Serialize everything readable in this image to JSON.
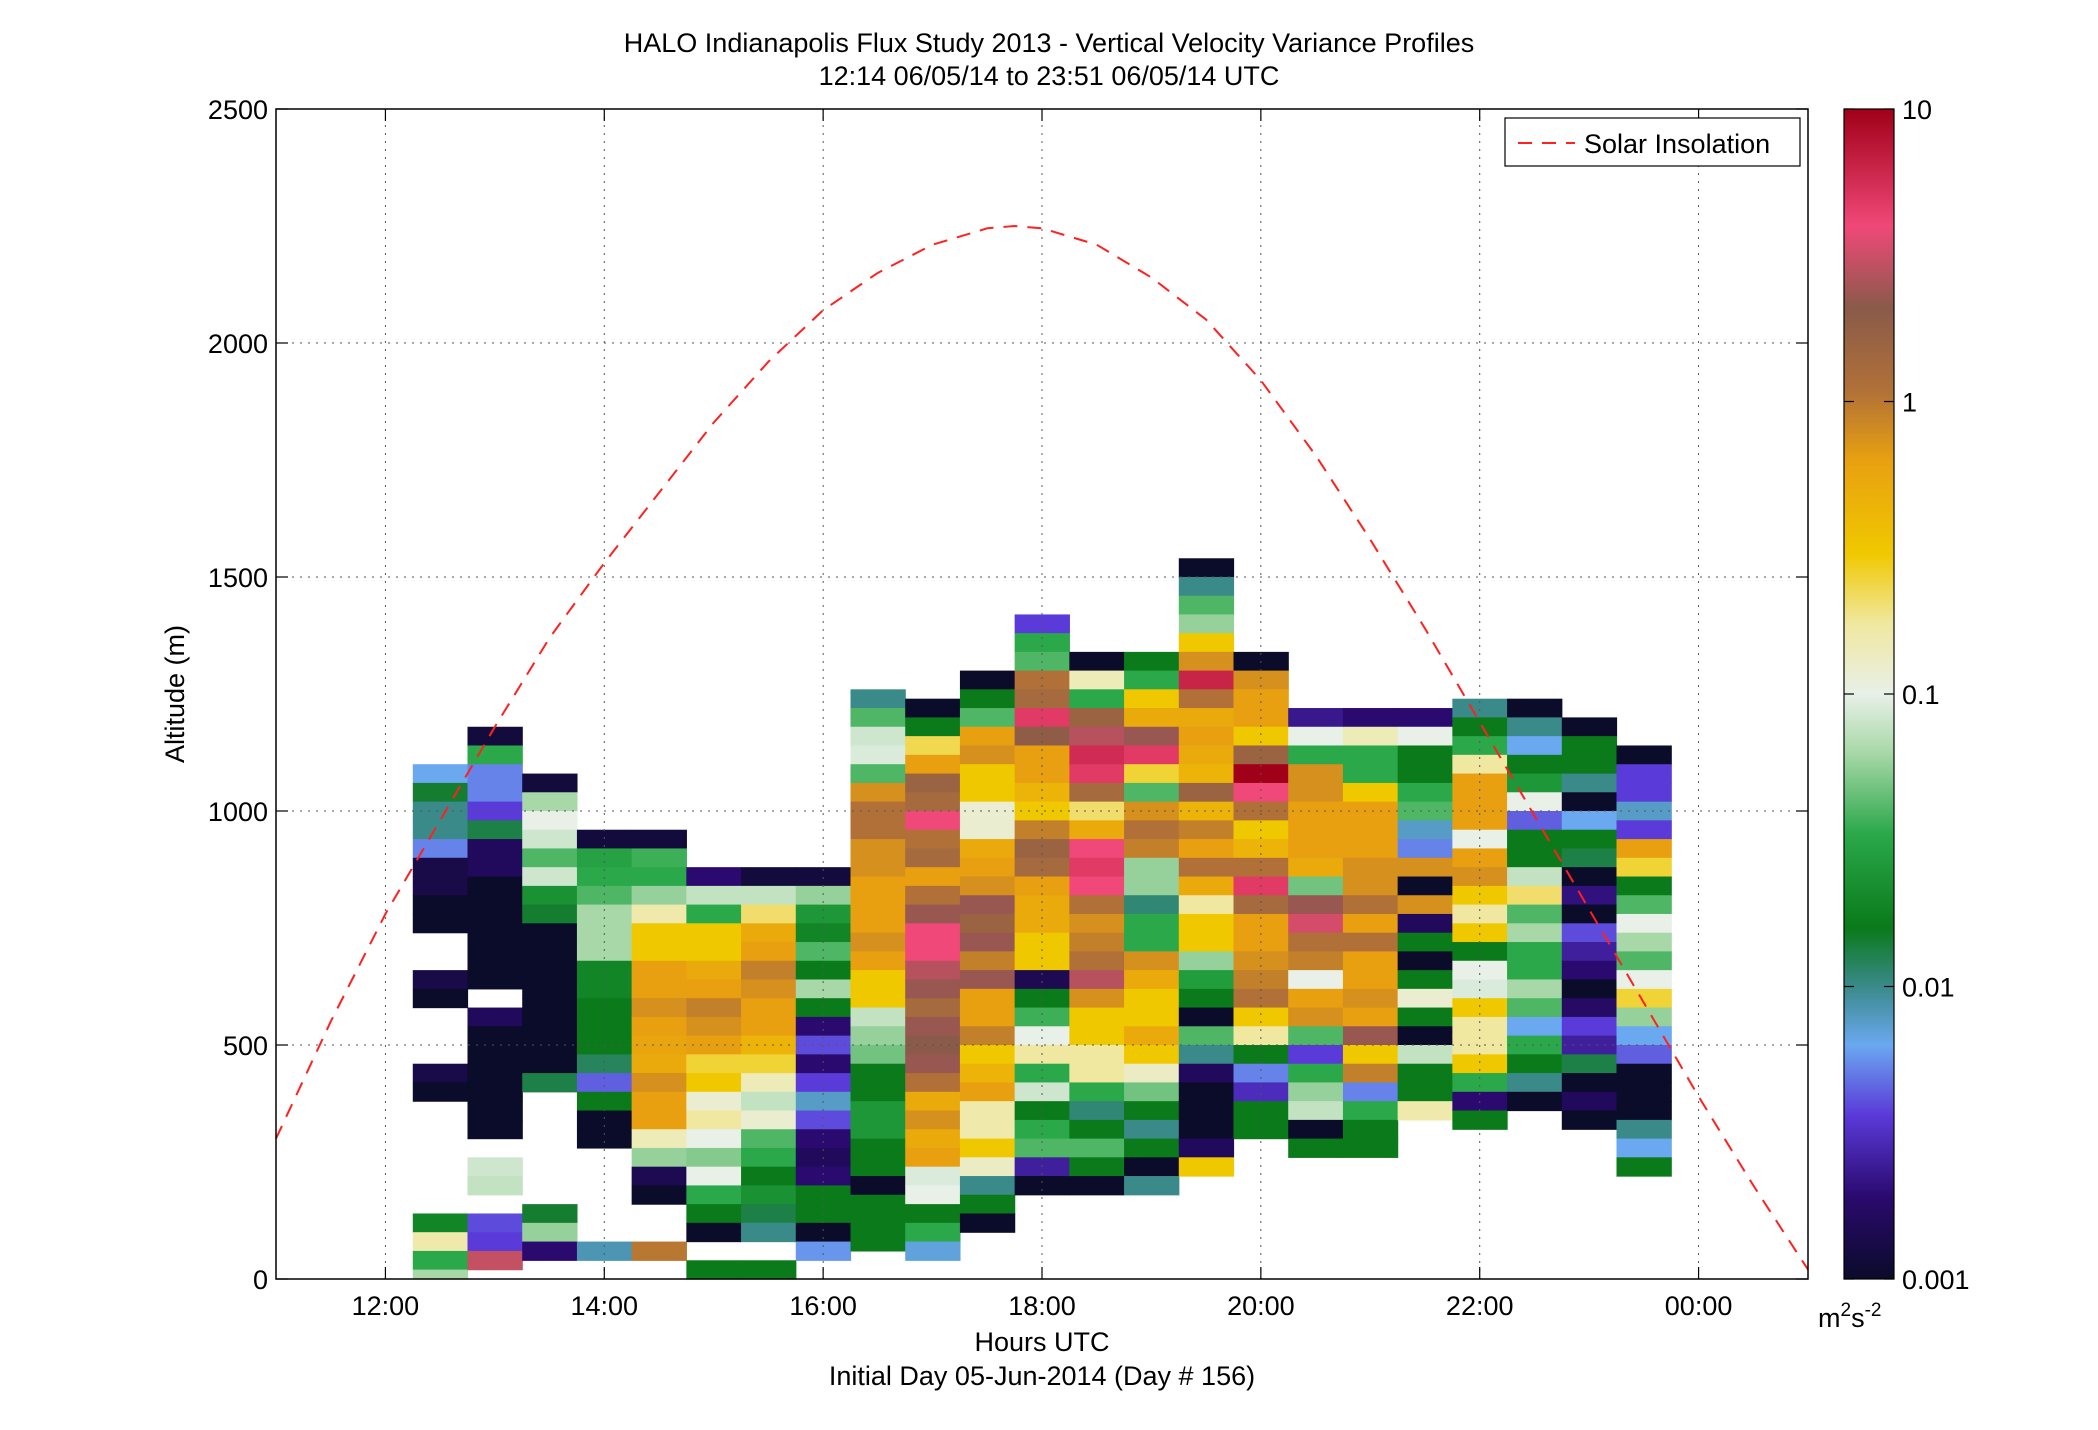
{
  "chart_data": {
    "type": "heatmap",
    "title": "HALO Indianapolis Flux Study 2013 - Vertical Velocity Variance Profiles",
    "subtitle": "12:14 06/05/14 to 23:51 06/05/14  UTC",
    "xlabel": "Hours UTC",
    "xlabel2": "Initial Day 05-Jun-2014 (Day # 156)",
    "ylabel": "Altitude (m)",
    "xlim": [
      11.0,
      25.0
    ],
    "ylim": [
      0,
      2500
    ],
    "x_ticks": [
      12,
      14,
      16,
      18,
      20,
      22,
      24
    ],
    "x_tick_labels": [
      "12:00",
      "14:00",
      "16:00",
      "18:00",
      "20:00",
      "22:00",
      "00:00"
    ],
    "y_ticks": [
      0,
      500,
      1000,
      1500,
      2000,
      2500
    ],
    "y_tick_labels": [
      "0",
      "500",
      "1000",
      "1500",
      "2000",
      "2500"
    ],
    "grid": true,
    "legend": {
      "placement": "top-right",
      "entries": [
        "Solar Insolation"
      ]
    },
    "colorbar": {
      "scale": "log",
      "range": [
        0.001,
        10
      ],
      "tick_values": [
        0.001,
        0.01,
        0.1,
        1,
        10
      ],
      "tick_labels": [
        "0.001",
        "0.01",
        "0.1",
        "1",
        "10"
      ],
      "unit_base": "m",
      "unit_exp1": "2",
      "unit_mid": "s",
      "unit_exp2": "-2",
      "stops": [
        {
          "v": 0.0,
          "color": "#0b0b2a"
        },
        {
          "v": 0.07,
          "color": "#2a0a6e"
        },
        {
          "v": 0.14,
          "color": "#5a3ad8"
        },
        {
          "v": 0.2,
          "color": "#6aa8f0"
        },
        {
          "v": 0.25,
          "color": "#3a8a8a"
        },
        {
          "v": 0.3,
          "color": "#0a7a1a"
        },
        {
          "v": 0.38,
          "color": "#2aa84a"
        },
        {
          "v": 0.45,
          "color": "#a8d8a8"
        },
        {
          "v": 0.5,
          "color": "#e8f0e8"
        },
        {
          "v": 0.56,
          "color": "#f0e8a0"
        },
        {
          "v": 0.62,
          "color": "#f0c800"
        },
        {
          "v": 0.7,
          "color": "#e8a010"
        },
        {
          "v": 0.76,
          "color": "#b07038"
        },
        {
          "v": 0.83,
          "color": "#8a5a4a"
        },
        {
          "v": 0.9,
          "color": "#f04878"
        },
        {
          "v": 1.0,
          "color": "#a00018"
        }
      ]
    },
    "solar_insolation": {
      "name": "Solar Insolation",
      "color": "#ff2020",
      "x": [
        11.0,
        11.5,
        12.0,
        12.5,
        13.0,
        13.5,
        14.0,
        14.5,
        15.0,
        15.5,
        16.0,
        16.5,
        17.0,
        17.5,
        17.75,
        18.0,
        18.5,
        19.0,
        19.5,
        20.0,
        20.5,
        21.0,
        21.5,
        22.0,
        22.5,
        23.0,
        23.5,
        24.0,
        24.5,
        25.0
      ],
      "y": [
        300,
        550,
        780,
        980,
        1180,
        1370,
        1530,
        1680,
        1830,
        1960,
        2070,
        2150,
        2210,
        2245,
        2250,
        2245,
        2210,
        2140,
        2050,
        1920,
        1760,
        1580,
        1390,
        1190,
        990,
        790,
        590,
        390,
        200,
        20
      ]
    },
    "bin_width_hours": 0.5,
    "bin_height_m": 40,
    "profiles": [
      {
        "t": 12.5,
        "alt_top": 1100,
        "levels": [
          0.2,
          0.29,
          0.25,
          0.25,
          0.18,
          0.03,
          0.03,
          0.0,
          0.0,
          null,
          null,
          0.03,
          0.0,
          null,
          null,
          null,
          0.03,
          0.0,
          null,
          null,
          null,
          null,
          null,
          null,
          0.32,
          0.55,
          0.38,
          0.45,
          0.19
        ]
      },
      {
        "t": 13.0,
        "alt_top": 1180,
        "levels": [
          0.02,
          0.38,
          0.18,
          0.18,
          0.14,
          0.28,
          0.05,
          0.05,
          0.0,
          0.0,
          0.0,
          0.0,
          0.0,
          0.0,
          null,
          0.05,
          0.0,
          0.0,
          0.0,
          0.0,
          0.0,
          0.0,
          null,
          0.48,
          0.47,
          null,
          0.15,
          0.14,
          0.87
        ]
      },
      {
        "t": 13.5,
        "alt_top": 1080,
        "levels": [
          0.02,
          0.45,
          0.5,
          0.48,
          0.4,
          0.48,
          0.34,
          0.29,
          0.0,
          0.0,
          0.0,
          0.0,
          0.0,
          0.0,
          0.0,
          0.0,
          0.28,
          null,
          null,
          null,
          null,
          null,
          null,
          0.29,
          0.44,
          0.07
        ]
      },
      {
        "t": 14.0,
        "alt_top": 960,
        "levels": [
          0.02,
          0.37,
          0.38,
          0.4,
          0.45,
          0.45,
          0.45,
          0.32,
          0.32,
          0.3,
          0.3,
          0.3,
          0.27,
          0.16,
          0.3,
          0.0,
          0.0,
          null,
          null,
          null,
          null,
          null,
          0.23
        ]
      },
      {
        "t": 14.5,
        "alt_top": 960,
        "levels": [
          0.02,
          0.39,
          0.38,
          0.44,
          0.55,
          0.62,
          0.62,
          0.7,
          0.7,
          0.72,
          0.7,
          0.69,
          0.68,
          0.72,
          0.7,
          0.7,
          0.54,
          0.44,
          0.04,
          0.0,
          null,
          null,
          0.75
        ]
      },
      {
        "t": 15.0,
        "alt_top": 880,
        "levels": [
          0.07,
          0.47,
          0.38,
          0.62,
          0.62,
          0.68,
          0.7,
          0.74,
          0.72,
          0.7,
          0.6,
          0.62,
          0.52,
          0.56,
          0.5,
          0.43,
          0.5,
          0.38,
          0.3,
          0.0,
          null,
          0.3
        ]
      },
      {
        "t": 15.5,
        "alt_top": 880,
        "levels": [
          0.02,
          0.47,
          0.58,
          0.68,
          0.7,
          0.74,
          0.72,
          0.7,
          0.7,
          0.66,
          0.6,
          0.54,
          0.47,
          0.52,
          0.4,
          0.38,
          0.3,
          0.34,
          0.28,
          0.25,
          null,
          0.3
        ]
      },
      {
        "t": 16.0,
        "alt_top": 880,
        "levels": [
          0.02,
          0.44,
          0.35,
          0.32,
          0.4,
          0.3,
          0.45,
          0.3,
          0.07,
          0.15,
          0.07,
          0.14,
          0.22,
          0.15,
          0.07,
          0.05,
          0.07,
          0.3,
          0.3,
          0.0,
          0.19
        ]
      },
      {
        "t": 16.5,
        "alt_top": 1260,
        "levels": [
          0.25,
          0.4,
          0.48,
          0.49,
          0.4,
          0.72,
          0.76,
          0.76,
          0.72,
          0.72,
          0.7,
          0.7,
          0.7,
          0.72,
          0.7,
          0.62,
          0.62,
          0.47,
          0.44,
          0.42,
          0.3,
          0.3,
          0.35,
          0.35,
          0.3,
          0.3,
          0.0,
          0.3,
          0.3,
          0.3
        ]
      },
      {
        "t": 17.0,
        "alt_top": 1240,
        "levels": [
          0.0,
          0.3,
          0.59,
          0.7,
          0.8,
          0.78,
          0.9,
          0.76,
          0.78,
          0.7,
          0.76,
          0.84,
          0.9,
          0.9,
          0.86,
          0.84,
          0.78,
          0.84,
          0.83,
          0.84,
          0.76,
          0.68,
          0.72,
          0.68,
          0.7,
          0.49,
          0.5,
          0.3,
          0.38,
          0.21
        ]
      },
      {
        "t": 17.5,
        "alt_top": 1300,
        "levels": [
          0.0,
          0.3,
          0.4,
          0.7,
          0.72,
          0.62,
          0.62,
          0.52,
          0.52,
          0.68,
          0.7,
          0.72,
          0.84,
          0.8,
          0.84,
          0.74,
          0.84,
          0.7,
          0.7,
          0.74,
          0.62,
          0.66,
          0.7,
          0.55,
          0.55,
          0.62,
          0.53,
          0.25,
          0.3,
          0.0
        ]
      },
      {
        "t": 18.0,
        "alt_top": 1420,
        "levels": [
          0.14,
          0.38,
          0.4,
          0.76,
          0.78,
          0.92,
          0.82,
          0.7,
          0.7,
          0.66,
          0.62,
          0.74,
          0.8,
          0.78,
          0.7,
          0.68,
          0.68,
          0.62,
          0.62,
          0.04,
          0.3,
          0.39,
          0.5,
          0.56,
          0.38,
          0.48,
          0.3,
          0.38,
          0.4,
          0.1,
          0.0
        ]
      },
      {
        "t": 18.5,
        "alt_top": 1340,
        "levels": [
          0.0,
          0.54,
          0.38,
          0.8,
          0.86,
          0.94,
          0.92,
          0.78,
          0.58,
          0.68,
          0.9,
          0.92,
          0.9,
          0.76,
          0.72,
          0.74,
          0.76,
          0.86,
          0.72,
          0.62,
          0.62,
          0.56,
          0.56,
          0.38,
          0.26,
          0.3,
          0.4,
          0.3,
          0.0
        ]
      },
      {
        "t": 19.0,
        "alt_top": 1340,
        "levels": [
          0.3,
          0.38,
          0.62,
          0.68,
          0.84,
          0.92,
          0.6,
          0.4,
          0.72,
          0.76,
          0.74,
          0.44,
          0.44,
          0.26,
          0.38,
          0.38,
          0.72,
          0.68,
          0.62,
          0.62,
          0.68,
          0.62,
          0.53,
          0.42,
          0.3,
          0.25,
          0.3,
          0.0,
          0.25
        ]
      },
      {
        "t": 19.5,
        "alt_top": 1540,
        "levels": [
          0.0,
          0.25,
          0.4,
          0.44,
          0.62,
          0.72,
          0.95,
          0.76,
          0.68,
          0.7,
          0.68,
          0.66,
          0.8,
          0.66,
          0.74,
          0.7,
          0.76,
          0.68,
          0.56,
          0.62,
          0.62,
          0.44,
          0.36,
          0.3,
          0.0,
          0.4,
          0.25,
          0.05,
          0.0,
          0.0,
          0.0,
          0.05,
          0.62
        ]
      },
      {
        "t": 20.0,
        "alt_top": 1340,
        "levels": [
          0.0,
          0.72,
          0.7,
          0.7,
          0.62,
          0.8,
          1.0,
          0.9,
          0.76,
          0.62,
          0.66,
          0.76,
          0.92,
          0.78,
          0.7,
          0.7,
          0.72,
          0.74,
          0.76,
          0.62,
          0.56,
          0.3,
          0.18,
          0.12,
          0.3,
          0.3
        ]
      },
      {
        "t": 20.5,
        "alt_top": 1220,
        "levels": [
          0.09,
          0.5,
          0.38,
          0.72,
          0.72,
          0.7,
          0.7,
          0.7,
          0.68,
          0.42,
          0.84,
          0.88,
          0.76,
          0.74,
          0.5,
          0.7,
          0.72,
          0.4,
          0.14,
          0.38,
          0.44,
          0.47,
          0.0,
          0.3
        ]
      },
      {
        "t": 21.0,
        "alt_top": 1220,
        "levels": [
          0.07,
          0.54,
          0.38,
          0.38,
          0.62,
          0.7,
          0.7,
          0.7,
          0.72,
          0.72,
          0.76,
          0.7,
          0.76,
          0.7,
          0.7,
          0.72,
          0.7,
          0.84,
          0.62,
          0.74,
          0.18,
          0.38,
          0.3,
          0.3
        ]
      },
      {
        "t": 21.5,
        "alt_top": 1220,
        "levels": [
          0.07,
          0.5,
          0.3,
          0.3,
          0.38,
          0.4,
          0.22,
          0.18,
          0.72,
          0.0,
          0.72,
          0.05,
          0.3,
          0.0,
          0.3,
          0.52,
          0.3,
          0.0,
          0.47,
          0.3,
          0.3,
          0.55
        ]
      },
      {
        "t": 22.0,
        "alt_top": 1240,
        "levels": [
          0.25,
          0.3,
          0.38,
          0.56,
          0.7,
          0.7,
          0.7,
          0.5,
          0.7,
          0.72,
          0.62,
          0.56,
          0.62,
          0.3,
          0.5,
          0.49,
          0.62,
          0.56,
          0.56,
          0.62,
          0.38,
          0.07,
          0.3
        ]
      },
      {
        "t": 22.5,
        "alt_top": 1240,
        "levels": [
          0.0,
          0.25,
          0.2,
          0.3,
          0.35,
          0.5,
          0.16,
          0.3,
          0.3,
          0.47,
          0.58,
          0.4,
          0.45,
          0.38,
          0.38,
          0.45,
          0.4,
          0.2,
          0.38,
          0.3,
          0.25,
          0.0
        ]
      },
      {
        "t": 23.0,
        "alt_top": 1200,
        "levels": [
          0.0,
          0.3,
          0.3,
          0.25,
          0.0,
          0.2,
          0.3,
          0.28,
          0.0,
          0.08,
          0.0,
          0.15,
          0.1,
          0.07,
          0.0,
          0.06,
          0.14,
          0.1,
          0.28,
          0.0,
          0.05,
          0.0
        ]
      },
      {
        "t": 23.5,
        "alt_top": 1140,
        "levels": [
          0.0,
          0.14,
          0.14,
          0.22,
          0.14,
          0.7,
          0.6,
          0.3,
          0.4,
          0.5,
          0.45,
          0.4,
          0.5,
          0.6,
          0.44,
          0.2,
          0.16,
          0.0,
          0.0,
          0.0,
          0.25,
          0.2,
          0.3
        ]
      }
    ]
  }
}
